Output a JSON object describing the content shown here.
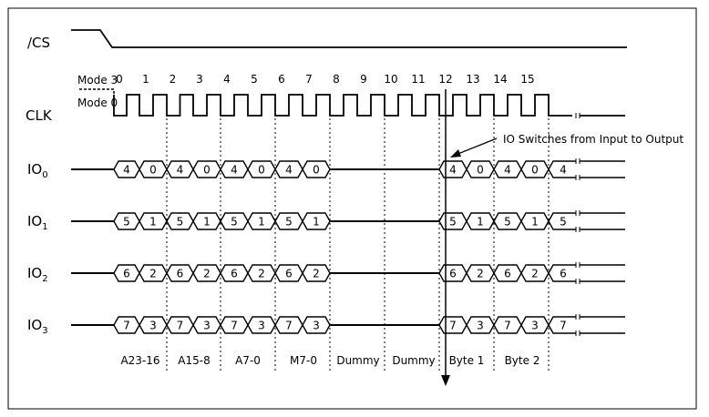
{
  "signals": {
    "cs": "/CS",
    "clk": "CLK",
    "mode3": "Mode 3",
    "mode0": "Mode 0",
    "io": [
      {
        "base": "IO",
        "sub": "0"
      },
      {
        "base": "IO",
        "sub": "1"
      },
      {
        "base": "IO",
        "sub": "2"
      },
      {
        "base": "IO",
        "sub": "3"
      }
    ]
  },
  "clock_numbers": [
    "0",
    "1",
    "2",
    "3",
    "4",
    "5",
    "6",
    "7",
    "8",
    "9",
    "10",
    "11",
    "12",
    "13",
    "14",
    "15"
  ],
  "annotation": "IO Switches from Input to Output",
  "io_bits": [
    {
      "hi": "4",
      "lo": "0"
    },
    {
      "hi": "5",
      "lo": "1"
    },
    {
      "hi": "6",
      "lo": "2"
    },
    {
      "hi": "7",
      "lo": "3"
    }
  ],
  "phases": [
    "A23-16",
    "A15-8",
    "A7-0",
    "M7-0",
    "Dummy",
    "Dummy",
    "Byte 1",
    "Byte 2"
  ],
  "colors": {
    "line": "#000000",
    "frame": "#000000",
    "background": "#ffffff"
  }
}
